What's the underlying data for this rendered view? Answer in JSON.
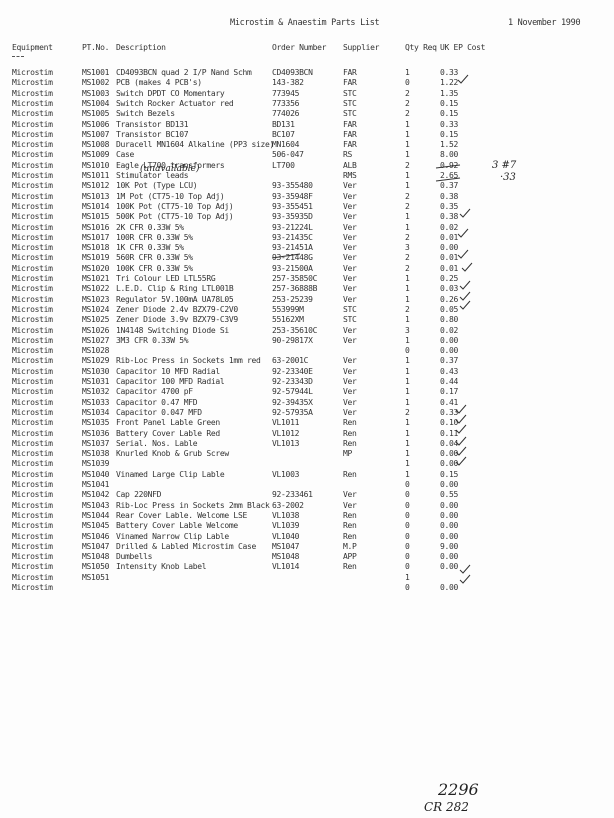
{
  "header": {
    "title": "Microstim & Anaestim Parts List",
    "date": "1 November 1990"
  },
  "table": {
    "columns": [
      "Equipment",
      "PT.No.",
      "Description",
      "Order Number",
      "Supplier",
      "Qty Req",
      "UK EP Cost"
    ],
    "rows": [
      {
        "eq": "Microstim",
        "pt": "MS1001",
        "desc": "CD4093BCN quad 2 I/P Nand Schm",
        "order": "CD4093BCN",
        "sup": "FAR",
        "qty": "1",
        "cost": "0.33"
      },
      {
        "eq": "Microstim",
        "pt": "MS1002",
        "desc": "PCB (makes 4 PCB's)",
        "order": "143-382",
        "sup": "FAR",
        "qty": "0",
        "cost": "1.22"
      },
      {
        "eq": "Microstim",
        "pt": "MS1003",
        "desc": "Switch DPDT CO Momentary",
        "order": "773945",
        "sup": "STC",
        "qty": "2",
        "cost": "1.35"
      },
      {
        "eq": "Microstim",
        "pt": "MS1004",
        "desc": "Switch Rocker Actuator red",
        "order": "773356",
        "sup": "STC",
        "qty": "2",
        "cost": "0.15"
      },
      {
        "eq": "Microstim",
        "pt": "MS1005",
        "desc": "Switch Bezels",
        "order": "774026",
        "sup": "STC",
        "qty": "2",
        "cost": "0.15"
      },
      {
        "eq": "Microstim",
        "pt": "MS1006",
        "desc": "Transistor BD131",
        "order": "BD131",
        "sup": "FAR",
        "qty": "1",
        "cost": "0.33"
      },
      {
        "eq": "Microstim",
        "pt": "MS1007",
        "desc": "Transistor BC107",
        "order": "BC107",
        "sup": "FAR",
        "qty": "1",
        "cost": "0.15"
      },
      {
        "eq": "Microstim",
        "pt": "MS1008",
        "desc": "Duracell MN1604 Alkaline (PP3 size)",
        "order": "MN1604",
        "sup": "FAR",
        "qty": "1",
        "cost": "1.52"
      },
      {
        "eq": "Microstim",
        "pt": "MS1009",
        "desc": "Case",
        "order": "506-047",
        "sup": "RS",
        "qty": "1",
        "cost": "8.00"
      },
      {
        "eq": "Microstim",
        "pt": "MS1010",
        "desc": "Eagle LT700 transformers",
        "order": "LT700",
        "sup": "ALB",
        "qty": "2",
        "cost": "0.92"
      },
      {
        "eq": "Microstim",
        "pt": "MS1011",
        "desc": "Stimulator leads",
        "sup": "RMS",
        "qty": "1",
        "cost": "2.65"
      },
      {
        "eq": "Microstim",
        "pt": "MS1012",
        "desc": "10K Pot (Type LCU)",
        "order": "93-355480",
        "sup": "Ver",
        "qty": "1",
        "cost": "0.37"
      },
      {
        "eq": "Microstim",
        "pt": "MS1013",
        "desc": "1M Pot (CT75-10 Top Adj)",
        "order": "93-35948F",
        "sup": "Ver",
        "qty": "2",
        "cost": "0.38"
      },
      {
        "eq": "Microstim",
        "pt": "MS1014",
        "desc": "100K Pot (CT75-10 Top Adj)",
        "order": "93-355451",
        "sup": "Ver",
        "qty": "2",
        "cost": "0.35"
      },
      {
        "eq": "Microstim",
        "pt": "MS1015",
        "desc": "500K Pot (CT75-10 Top Adj)",
        "order": "93-35935D",
        "sup": "Ver",
        "qty": "1",
        "cost": "0.38"
      },
      {
        "eq": "Microstim",
        "pt": "MS1016",
        "desc": "2K CFR 0.33W 5%",
        "order": "93-21224L",
        "sup": "Ver",
        "qty": "1",
        "cost": "0.02"
      },
      {
        "eq": "Microstim",
        "pt": "MS1017",
        "desc": "100R CFR 0.33W 5%",
        "order": "93-21435C",
        "sup": "Ver",
        "qty": "2",
        "cost": "0.01"
      },
      {
        "eq": "Microstim",
        "pt": "MS1018",
        "desc": "1K CFR 0.33W 5%",
        "order": "93-21451A",
        "sup": "Ver",
        "qty": "3",
        "cost": "0.00"
      },
      {
        "eq": "Microstim",
        "pt": "MS1019",
        "desc": "560R CFR 0.33W 5%",
        "order": "93-21448G",
        "sup": "Ver",
        "qty": "2",
        "cost": "0.01"
      },
      {
        "eq": "Microstim",
        "pt": "MS1020",
        "desc": "100K CFR 0.33W 5%",
        "order": "93-21500A",
        "sup": "Ver",
        "qty": "2",
        "cost": "0.01"
      },
      {
        "eq": "Microstim",
        "pt": "MS1021",
        "desc": "Tri Colour LED LTL55RG",
        "order": "257-35850C",
        "sup": "Ver",
        "qty": "1",
        "cost": "0.25"
      },
      {
        "eq": "Microstim",
        "pt": "MS1022",
        "desc": "L.E.D. Clip & Ring LTL001B",
        "order": "257-36888B",
        "sup": "Ver",
        "qty": "1",
        "cost": "0.03"
      },
      {
        "eq": "Microstim",
        "pt": "MS1023",
        "desc": "Regulator 5V.100mA UA78L05",
        "order": "253-25239",
        "sup": "Ver",
        "qty": "1",
        "cost": "0.26"
      },
      {
        "eq": "Microstim",
        "pt": "MS1024",
        "desc": "Zener Diode 2.4v BZX79-C2V0",
        "order": "553999M",
        "sup": "STC",
        "qty": "2",
        "cost": "0.05"
      },
      {
        "eq": "Microstim",
        "pt": "MS1025",
        "desc": "Zener Diode 3.9v BZX79-C3V9",
        "order": "55162XM",
        "sup": "STC",
        "qty": "1",
        "cost": "0.80"
      },
      {
        "eq": "Microstim",
        "pt": "MS1026",
        "desc": "1N4148 Switching Diode Si",
        "order": "253-35610C",
        "sup": "Ver",
        "qty": "3",
        "cost": "0.02"
      },
      {
        "eq": "Microstim",
        "pt": "MS1027",
        "desc": "3M3 CFR 0.33W 5%",
        "order": "90-29817X",
        "sup": "Ver",
        "qty": "1",
        "cost": "0.00"
      },
      {
        "eq": "Microstim",
        "pt": "MS1028",
        "qty": "0",
        "cost": "0.00"
      },
      {
        "eq": "Microstim",
        "pt": "MS1029",
        "desc": "Rib-Loc Press in Sockets 1mm red",
        "order": "63-2001C",
        "sup": "Ver",
        "qty": "1",
        "cost": "0.37"
      },
      {
        "eq": "Microstim",
        "pt": "MS1030",
        "desc": "Capacitor 10 MFD Radial",
        "order": "92-23340E",
        "sup": "Ver",
        "qty": "1",
        "cost": "0.43"
      },
      {
        "eq": "Microstim",
        "pt": "MS1031",
        "desc": "Capacitor 100 MFD Radial",
        "order": "92-23343D",
        "sup": "Ver",
        "qty": "1",
        "cost": "0.44"
      },
      {
        "eq": "Microstim",
        "pt": "MS1032",
        "desc": "Capacitor 4700 pF",
        "order": "92-57944L",
        "sup": "Ver",
        "qty": "1",
        "cost": "0.17"
      },
      {
        "eq": "Microstim",
        "pt": "MS1033",
        "desc": "Capacitor 0.47 MFD",
        "order": "92-39435X",
        "sup": "Ver",
        "qty": "1",
        "cost": "0.41"
      },
      {
        "eq": "Microstim",
        "pt": "MS1034",
        "desc": "Capacitor 0.047 MFD",
        "order": "92-57935A",
        "sup": "Ver",
        "qty": "2",
        "cost": "0.33"
      },
      {
        "eq": "Microstim",
        "pt": "MS1035",
        "desc": "Front Panel Lable Green",
        "order": "VL1011",
        "sup": "Ren",
        "qty": "1",
        "cost": "0.10"
      },
      {
        "eq": "Microstim",
        "pt": "MS1036",
        "desc": "Battery Cover Lable Red",
        "order": "VL1012",
        "sup": "Ren",
        "qty": "1",
        "cost": "0.11"
      },
      {
        "eq": "Microstim",
        "pt": "MS1037",
        "desc": "Serial. Nos. Lable",
        "order": "VL1013",
        "sup": "Ren",
        "qty": "1",
        "cost": "0.04"
      },
      {
        "eq": "Microstim",
        "pt": "MS1038",
        "desc": "Knurled Knob & Grub Screw",
        "sup": "MP",
        "qty": "1",
        "cost": "0.00"
      },
      {
        "eq": "Microstim",
        "pt": "MS1039",
        "qty": "1",
        "cost": "0.00"
      },
      {
        "eq": "Microstim",
        "pt": "MS1040",
        "desc": "Vinamed Large Clip Lable",
        "order": "VL1003",
        "sup": "Ren",
        "qty": "1",
        "cost": "0.15"
      },
      {
        "eq": "Microstim",
        "pt": "MS1041",
        "qty": "0",
        "cost": "0.00"
      },
      {
        "eq": "Microstim",
        "pt": "MS1042",
        "desc": "Cap 220NFD",
        "order": "92-233461",
        "sup": "Ver",
        "qty": "0",
        "cost": "0.55"
      },
      {
        "eq": "Microstim",
        "pt": "MS1043",
        "desc": "Rib-Loc Press in Sockets 2mm Black",
        "order": "63-2002",
        "sup": "Ver",
        "qty": "0",
        "cost": "0.00"
      },
      {
        "eq": "Microstim",
        "pt": "MS1044",
        "desc": "Rear Cover Lable. Welcome LSE",
        "order": "VL1038",
        "sup": "Ren",
        "qty": "0",
        "cost": "0.00"
      },
      {
        "eq": "Microstim",
        "pt": "MS1045",
        "desc": "Battery Cover Lable Welcome",
        "order": "VL1039",
        "sup": "Ren",
        "qty": "0",
        "cost": "0.00"
      },
      {
        "eq": "Microstim",
        "pt": "MS1046",
        "desc": "Vinamed Narrow Clip Lable",
        "order": "VL1040",
        "sup": "Ren",
        "qty": "0",
        "cost": "0.00"
      },
      {
        "eq": "Microstim",
        "pt": "MS1047",
        "desc": "Drilled & Labled Microstim Case",
        "order": "MS1047",
        "sup": "M.P",
        "qty": "0",
        "cost": "9.00"
      },
      {
        "eq": "Microstim",
        "pt": "MS1048",
        "desc": "Dumbells",
        "order": "MS1048",
        "sup": "APP",
        "qty": "0",
        "cost": "0.00"
      },
      {
        "eq": "Microstim",
        "pt": "MS1050",
        "desc": "Intensity Knob Label",
        "order": "VL1014",
        "sup": "Ren",
        "qty": "0",
        "cost": "0.00"
      },
      {
        "eq": "Microstim",
        "pt": "MS1051",
        "qty": "1"
      },
      {
        "eq": "Microstim",
        "qty": "0",
        "cost": "0.00"
      }
    ]
  },
  "annotations": {
    "unavailable": "(unavailable)",
    "note1": "3 #7",
    "note2": "·33",
    "stamp": "2296",
    "ref": "CR 282"
  }
}
